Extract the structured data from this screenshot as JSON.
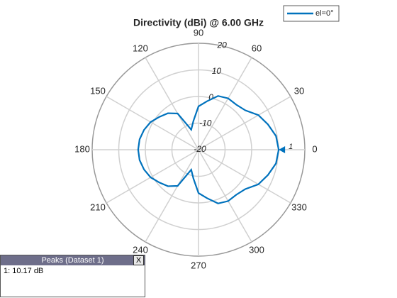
{
  "chart_data": {
    "type": "polar",
    "title": "Directivity (dBi) @ 6.00 GHz",
    "x": [
      0,
      10,
      20,
      30,
      40,
      50,
      60,
      70,
      80,
      90,
      100,
      110,
      120,
      130,
      140,
      150,
      160,
      170,
      180,
      190,
      200,
      210,
      220,
      230,
      240,
      250,
      260,
      270,
      280,
      290,
      300,
      310,
      320,
      330,
      340,
      350
    ],
    "series": [
      {
        "name": "el=0°",
        "color": "#0072bd",
        "values": [
          10.17,
          9.6,
          7.8,
          6,
          3,
          2.1,
          2.3,
          1.5,
          -1.5,
          -3.7,
          -9,
          -12,
          -4.3,
          -2.1,
          -0.8,
          0.8,
          1.8,
          2.5,
          2.7,
          2.5,
          1.8,
          0.8,
          -0.8,
          -2.1,
          -4.3,
          -12,
          -9,
          -3.7,
          -1.5,
          1.5,
          2.3,
          2.1,
          3,
          6,
          7.8,
          9.6
        ]
      }
    ],
    "rlim": [
      -20,
      20
    ],
    "rticks": [
      -20,
      -10,
      0,
      10,
      20
    ],
    "thetaticks": [
      0,
      30,
      60,
      90,
      120,
      150,
      180,
      210,
      240,
      270,
      300,
      330
    ],
    "peak_marker": {
      "label": "1",
      "angle": 0,
      "value": 10.17
    },
    "grid": true,
    "legend": "top-right"
  },
  "peaks": {
    "title": "Peaks (Dataset 1)",
    "close": "X",
    "rows": [
      "1: 10.17 dB"
    ]
  }
}
